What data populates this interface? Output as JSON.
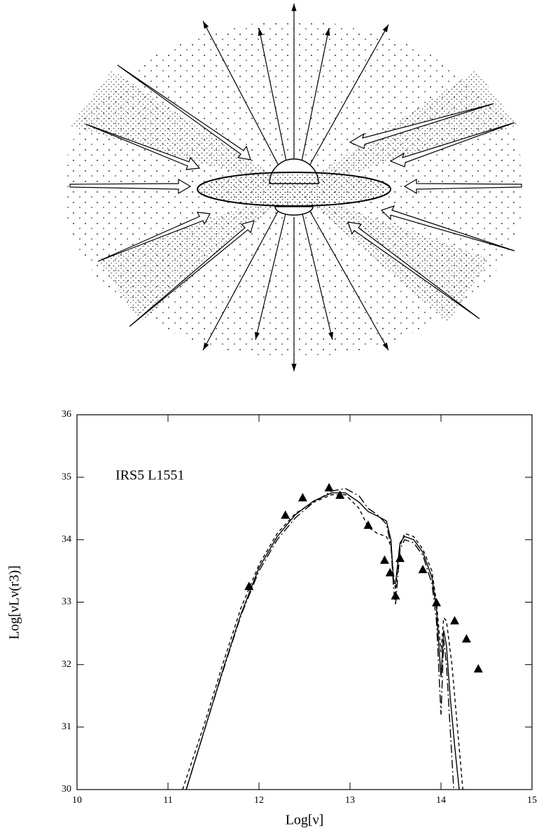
{
  "chart_data": {
    "type": "line",
    "annotation": "IRS5  L1551",
    "xlabel": "Log[ν]",
    "ylabel": "Log[νLν(r3)]",
    "xlim": [
      10,
      15
    ],
    "ylim": [
      30,
      36
    ],
    "xticks": [
      10,
      11,
      12,
      13,
      14,
      15
    ],
    "yticks": [
      30,
      31,
      32,
      33,
      34,
      35,
      36
    ],
    "series": [
      {
        "type": "scatter",
        "marker": "triangle",
        "color": "#000000",
        "x": [
          11.89,
          12.29,
          12.48,
          12.77,
          12.89,
          13.2,
          13.38,
          13.44,
          13.5,
          13.55,
          13.8,
          13.95,
          14.15,
          14.28,
          14.41
        ],
        "values": [
          33.25,
          34.39,
          34.67,
          34.83,
          34.71,
          34.23,
          33.67,
          33.47,
          33.1,
          33.7,
          33.52,
          32.99,
          32.7,
          32.41,
          31.93
        ]
      },
      {
        "type": "line",
        "style": "solid",
        "color": "#000000",
        "x": [
          11.2,
          11.4,
          11.6,
          11.8,
          12.0,
          12.2,
          12.4,
          12.6,
          12.8,
          12.95,
          13.1,
          13.2,
          13.3,
          13.4,
          13.45,
          13.48,
          13.5,
          13.55,
          13.6,
          13.7,
          13.8,
          13.9,
          13.95,
          14.0,
          14.03,
          14.06,
          14.1,
          14.15,
          14.2
        ],
        "values": [
          30.0,
          30.95,
          31.9,
          32.8,
          33.55,
          34.05,
          34.4,
          34.62,
          34.75,
          34.75,
          34.6,
          34.45,
          34.38,
          34.3,
          34.0,
          33.3,
          33.3,
          33.95,
          34.05,
          34.0,
          33.8,
          33.4,
          32.9,
          31.8,
          32.55,
          32.3,
          31.5,
          30.7,
          30.0
        ]
      },
      {
        "type": "line",
        "style": "dashed",
        "color": "#000000",
        "x": [
          11.16,
          11.4,
          11.6,
          11.8,
          12.0,
          12.2,
          12.4,
          12.6,
          12.8,
          12.95,
          13.1,
          13.2,
          13.3,
          13.4,
          13.45,
          13.48,
          13.5,
          13.55,
          13.6,
          13.7,
          13.8,
          13.9,
          13.95,
          14.0,
          14.03,
          14.06,
          14.12,
          14.18,
          14.24
        ],
        "values": [
          30.0,
          31.05,
          32.0,
          32.9,
          33.6,
          34.1,
          34.42,
          34.6,
          34.72,
          34.72,
          34.5,
          34.2,
          34.1,
          34.05,
          33.9,
          33.4,
          33.2,
          33.9,
          34.1,
          34.05,
          33.85,
          33.5,
          33.0,
          32.2,
          32.75,
          32.7,
          32.0,
          31.0,
          30.0
        ]
      },
      {
        "type": "line",
        "style": "dashdot",
        "color": "#000000",
        "x": [
          11.2,
          11.4,
          11.6,
          11.8,
          12.0,
          12.2,
          12.4,
          12.6,
          12.8,
          12.95,
          13.1,
          13.2,
          13.3,
          13.4,
          13.45,
          13.48,
          13.5,
          13.55,
          13.6,
          13.7,
          13.8,
          13.9,
          13.95,
          14.0,
          14.03,
          14.06,
          14.1,
          14.14
        ],
        "values": [
          30.0,
          30.95,
          31.88,
          32.78,
          33.5,
          34.0,
          34.35,
          34.6,
          34.78,
          34.82,
          34.7,
          34.5,
          34.4,
          34.25,
          33.9,
          33.2,
          32.95,
          33.85,
          34.0,
          33.95,
          33.75,
          33.3,
          32.7,
          31.2,
          32.4,
          32.0,
          31.0,
          30.0
        ]
      }
    ]
  }
}
